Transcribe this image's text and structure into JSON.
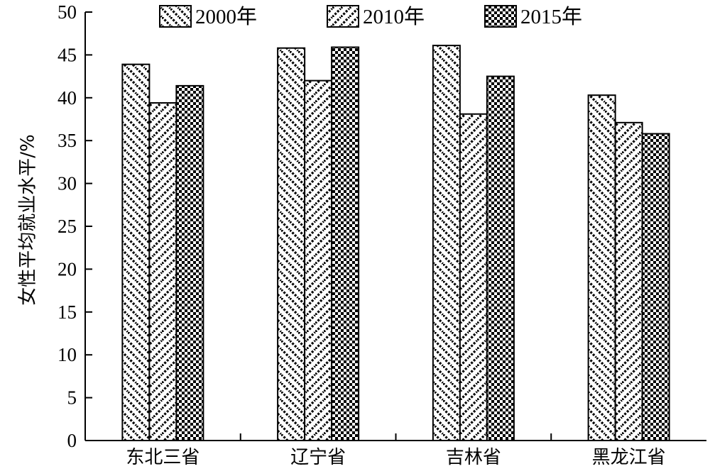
{
  "chart_data": {
    "type": "bar",
    "title": "",
    "xlabel": "",
    "ylabel": "女性平均就业水平/%",
    "ylim": [
      0,
      50
    ],
    "yticks": [
      0,
      5,
      10,
      15,
      20,
      25,
      30,
      35,
      40,
      45,
      50
    ],
    "categories": [
      "东北三省",
      "辽宁省",
      "吉林省",
      "黑龙江省"
    ],
    "series": [
      {
        "name": "2000年",
        "values": [
          43.9,
          45.8,
          46.1,
          40.3
        ],
        "pattern": "diag-back"
      },
      {
        "name": "2010年",
        "values": [
          39.4,
          42.0,
          38.1,
          37.1
        ],
        "pattern": "diag-fwd"
      },
      {
        "name": "2015年",
        "values": [
          41.4,
          45.9,
          42.5,
          35.8
        ],
        "pattern": "checker"
      }
    ],
    "legend_position": "top",
    "grid": false
  }
}
